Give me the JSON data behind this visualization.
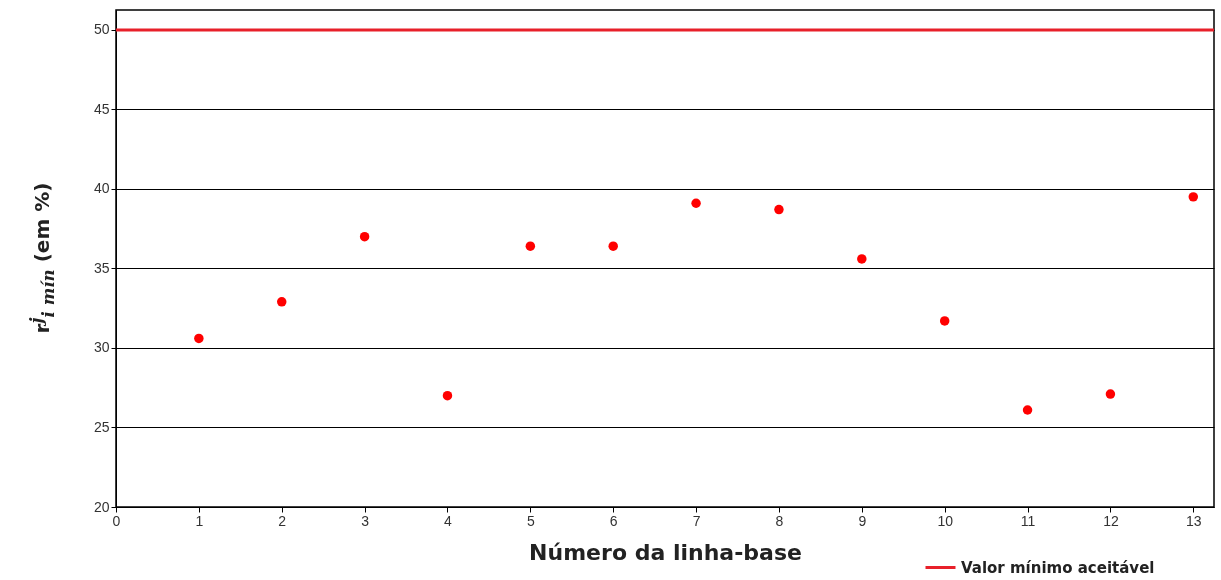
{
  "chart_data": {
    "type": "scatter",
    "xlabel": "Número da linha-base",
    "ylabel": "r$^{j}$$_{i mín}$ (em %)",
    "x": [
      1,
      2,
      3,
      4,
      5,
      6,
      7,
      8,
      9,
      10,
      11,
      12,
      13
    ],
    "series": [
      {
        "color": "#ff0000",
        "values": [
          30.6,
          32.9,
          37.0,
          27.0,
          36.4,
          36.4,
          39.1,
          38.7,
          35.6,
          31.7,
          26.1,
          27.1,
          39.5
        ]
      }
    ],
    "xlim": [
      0,
      13.25
    ],
    "ylim": [
      20,
      51.25
    ],
    "xticks": [
      0,
      1,
      2,
      3,
      4,
      5,
      6,
      7,
      8,
      9,
      10,
      11,
      12,
      13
    ],
    "yticks": [
      20,
      25,
      30,
      35,
      40,
      45,
      50
    ],
    "ref_lines": [
      {
        "axis": "y",
        "value": 50,
        "label": "Valor mínimo aceitável",
        "color": "#e8202a"
      }
    ],
    "grid": "y",
    "marker": "circle",
    "legend": "bottom right"
  }
}
